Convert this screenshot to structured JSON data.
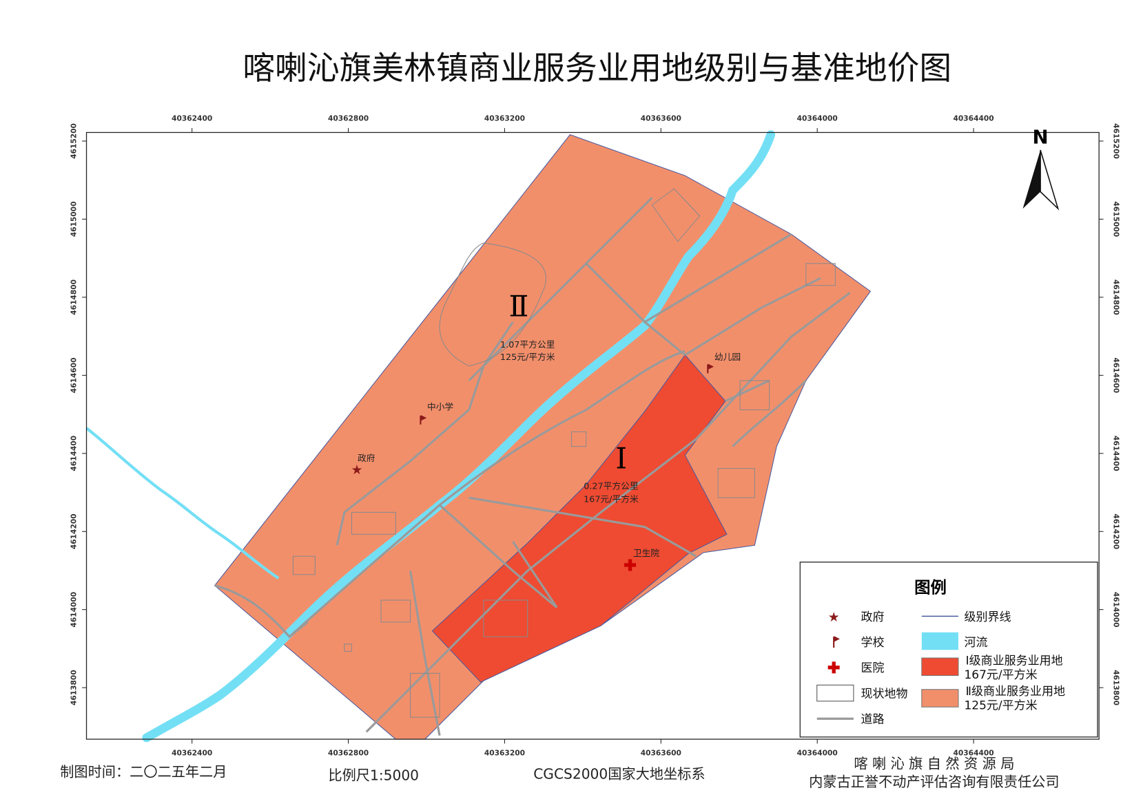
{
  "title": "喀喇沁旗美林镇商业服务业用地级别与基准地价图",
  "map": {
    "xlim": [
      40362130,
      40364721
    ],
    "ylim": [
      4613668,
      4615222
    ],
    "xticks": [
      40362400,
      40362800,
      40363200,
      40363600,
      40364000,
      40364400
    ],
    "yticks": [
      4613800,
      4614000,
      4614200,
      4614400,
      4614600,
      4614800,
      4615000,
      4615200
    ]
  },
  "north": "N",
  "zones": [
    {
      "grade": "Ⅱ",
      "area": "1.07平方公里",
      "price": "125元/平方米"
    },
    {
      "grade": "Ⅰ",
      "area": "0.27平方公里",
      "price": "167元/平方米"
    }
  ],
  "places": [
    "政府",
    "中小学",
    "幼儿园",
    "卫生院"
  ],
  "legend": {
    "title": "图例",
    "government": "政府",
    "school": "学校",
    "hospital": "医院",
    "features": "现状地物",
    "road": "道路",
    "boundary": "级别界线",
    "river": "河流",
    "grade1": [
      "Ⅰ级商业服务业用地",
      "167元/平方米"
    ],
    "grade2": [
      "Ⅱ级商业服务业用地",
      "125元/平方米"
    ]
  },
  "footer": {
    "date": "制图时间：二〇二五年二月",
    "scale": "比例尺1:5000",
    "crs": "CGCS2000国家大地坐标系",
    "agency": "喀 喇 沁 旗 自 然 资 源 局",
    "company": "内蒙古正誉不动产评估咨询有限责任公司"
  }
}
